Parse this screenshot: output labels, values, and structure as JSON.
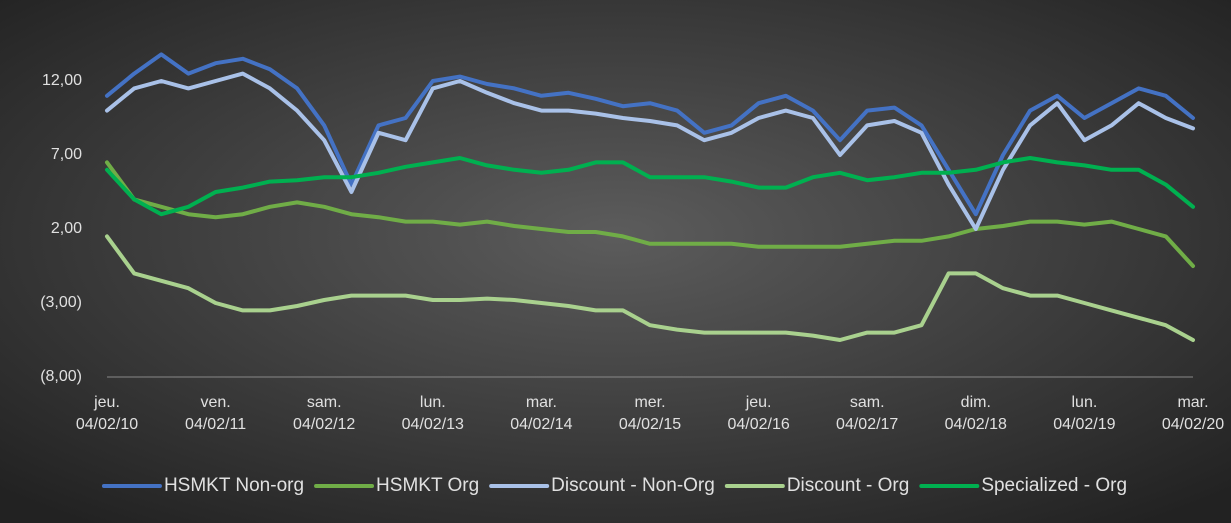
{
  "chart_data": {
    "type": "line",
    "categories": [
      "jeu. 04/02/10",
      null,
      null,
      null,
      "ven. 04/02/11",
      null,
      null,
      null,
      "sam. 04/02/12",
      null,
      null,
      null,
      "lun. 04/02/13",
      null,
      null,
      null,
      "mar. 04/02/14",
      null,
      null,
      null,
      "mer. 04/02/15",
      null,
      null,
      null,
      "jeu. 04/02/16",
      null,
      null,
      null,
      "sam. 04/02/17",
      null,
      null,
      null,
      "dim. 04/02/18",
      null,
      null,
      null,
      "lun. 04/02/19",
      null,
      null,
      null,
      "mar. 04/02/20"
    ],
    "series": [
      {
        "name": "HSMKT Non-org",
        "color": "#4472c4",
        "values": [
          11,
          12.5,
          13.8,
          12.5,
          13.2,
          13.5,
          12.8,
          11.5,
          9,
          5,
          9,
          9.5,
          12,
          12.3,
          11.8,
          11.5,
          11,
          11.2,
          10.8,
          10.3,
          10.5,
          10,
          8.5,
          9,
          10.5,
          11,
          10,
          8,
          10,
          10.2,
          9,
          6,
          3,
          7,
          10,
          11,
          9.5,
          10.5,
          11.5,
          11,
          9.5
        ]
      },
      {
        "name": "HSMKT Org",
        "color": "#70ad47",
        "values": [
          6.5,
          4,
          3.5,
          3,
          2.8,
          3,
          3.5,
          3.8,
          3.5,
          3,
          2.8,
          2.5,
          2.5,
          2.3,
          2.5,
          2.2,
          2,
          1.8,
          1.8,
          1.5,
          1,
          1,
          1,
          1,
          0.8,
          0.8,
          0.8,
          0.8,
          1,
          1.2,
          1.2,
          1.5,
          2,
          2.2,
          2.5,
          2.5,
          2.3,
          2.5,
          2,
          1.5,
          -0.5
        ]
      },
      {
        "name": "Discount - Non-Org",
        "color": "#a9c1e8",
        "values": [
          10,
          11.5,
          12,
          11.5,
          12,
          12.5,
          11.5,
          10,
          8,
          4.5,
          8.5,
          8,
          11.5,
          12,
          11.2,
          10.5,
          10,
          10,
          9.8,
          9.5,
          9.3,
          9,
          8,
          8.5,
          9.5,
          10,
          9.5,
          7,
          9,
          9.3,
          8.5,
          5,
          2,
          6,
          9,
          10.5,
          8,
          9,
          10.5,
          9.5,
          8.8
        ]
      },
      {
        "name": "Discount - Org",
        "color": "#a9d18e",
        "values": [
          1.5,
          -1,
          -1.5,
          -2,
          -3,
          -3.5,
          -3.5,
          -3.2,
          -2.8,
          -2.5,
          -2.5,
          -2.5,
          -2.8,
          -2.8,
          -2.7,
          -2.8,
          -3,
          -3.2,
          -3.5,
          -3.5,
          -4.5,
          -4.8,
          -5,
          -5,
          -5,
          -5,
          -5.2,
          -5.5,
          -5,
          -5,
          -4.5,
          -1,
          -1,
          -2,
          -2.5,
          -2.5,
          -3,
          -3.5,
          -4,
          -4.5,
          -5.5
        ]
      },
      {
        "name": "Specialized - Org",
        "color": "#00b050",
        "values": [
          6,
          4,
          3,
          3.5,
          4.5,
          4.8,
          5.2,
          5.3,
          5.5,
          5.5,
          5.8,
          6.2,
          6.5,
          6.8,
          6.3,
          6,
          5.8,
          6,
          6.5,
          6.5,
          5.5,
          5.5,
          5.5,
          5.2,
          4.8,
          4.8,
          5.5,
          5.8,
          5.3,
          5.5,
          5.8,
          5.8,
          6,
          6.5,
          6.8,
          6.5,
          6.3,
          6,
          6,
          5,
          3.5
        ]
      }
    ],
    "ylim": [
      -8,
      15
    ],
    "yticks": [
      {
        "value": -8,
        "label": "(8,00)"
      },
      {
        "value": -3,
        "label": "(3,00)"
      },
      {
        "value": 2,
        "label": "2,00"
      },
      {
        "value": 7,
        "label": "7,00"
      },
      {
        "value": 12,
        "label": "12,00"
      }
    ],
    "grid": false,
    "legend": "bottom"
  }
}
